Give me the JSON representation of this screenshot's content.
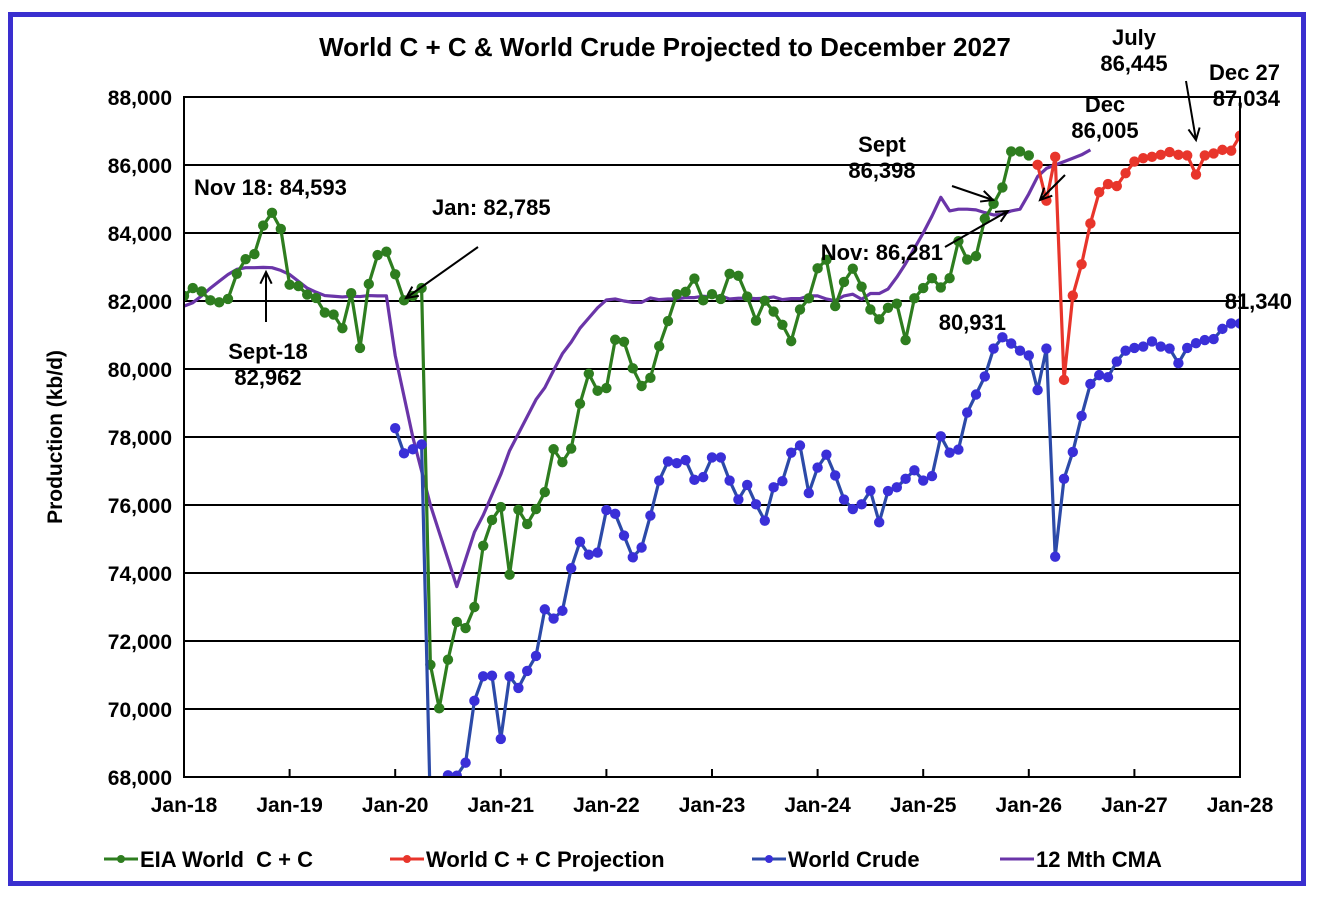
{
  "chart_data": {
    "type": "line",
    "title": "World C + C & World Crude Projected to December 2027",
    "xlabel": "",
    "ylabel": "Production (kb/d)",
    "ylim": [
      68000,
      88000
    ],
    "yticks": [
      "68,000",
      "70,000",
      "72,000",
      "74,000",
      "76,000",
      "78,000",
      "80,000",
      "82,000",
      "84,000",
      "86,000",
      "88,000"
    ],
    "ytick_values": [
      68000,
      70000,
      72000,
      74000,
      76000,
      78000,
      80000,
      82000,
      84000,
      86000,
      88000
    ],
    "xticks": [
      "Jan-18",
      "Jan-19",
      "Jan-20",
      "Jan-21",
      "Jan-22",
      "Jan-23",
      "Jan-24",
      "Jan-25",
      "Jan-26",
      "Jan-27",
      "Jan-28"
    ],
    "x_start": "Jan-18",
    "x_unit": "month index from Jan-18",
    "xlim": [
      0,
      120
    ],
    "grid": "horizontal",
    "legend_position": "bottom",
    "series": [
      {
        "name": "EIA World  C + C",
        "color": "#2e7d1f",
        "marker": true,
        "x_start": 0,
        "values": [
          82150,
          82380,
          82280,
          82020,
          81960,
          82060,
          82800,
          83230,
          83380,
          84220,
          84593,
          84120,
          82480,
          82440,
          82190,
          82090,
          81660,
          81600,
          81200,
          82230,
          80620,
          82500,
          83350,
          83450,
          82785,
          82020,
          82150,
          82380,
          71300,
          70020,
          71450,
          72560,
          72380,
          73000,
          74800,
          75560,
          75940,
          73950,
          75860,
          75440,
          75880,
          76380,
          77640,
          77260,
          77660,
          78980,
          79860,
          79360,
          79440,
          80860,
          80800,
          80020,
          79500,
          79740,
          80670,
          81410,
          82200,
          82270,
          82660,
          82020,
          82200,
          82060,
          82800,
          82740,
          82130,
          81420,
          82010,
          81690,
          81300,
          80820,
          81750,
          82080,
          82960,
          83210,
          81850,
          82560,
          82950,
          82420,
          81750,
          81460,
          81800,
          81920,
          80850,
          82080,
          82380,
          82670,
          82400,
          82670,
          83760,
          83220,
          83320,
          84420,
          84860,
          85340,
          86398,
          86398,
          86281
        ]
      },
      {
        "name": "World C + C Projection",
        "color": "#e8352b",
        "marker": true,
        "x_start": 97,
        "values": [
          86005,
          84950,
          86240,
          79680,
          82160,
          83080,
          84280,
          85200,
          85440,
          85380,
          85760,
          86100,
          86200,
          86240,
          86300,
          86380,
          86300,
          86280,
          85720,
          86280,
          86340,
          86445,
          86420,
          86860,
          87034
        ]
      },
      {
        "name": "World Crude",
        "color": "#3a2fd8",
        "line_color": "#2c4aa8",
        "marker": true,
        "x_start": 24,
        "values": [
          78260,
          77520,
          77640,
          77780,
          67000,
          67200,
          68050,
          68040,
          68420,
          70240,
          70960,
          70980,
          69120,
          70960,
          70620,
          71120,
          71560,
          72930,
          72660,
          72890,
          74140,
          74920,
          74540,
          74600,
          75850,
          75740,
          75100,
          74460,
          74750,
          75690,
          76720,
          77280,
          77230,
          77320,
          76740,
          76820,
          77400,
          77400,
          76720,
          76160,
          76590,
          76020,
          75540,
          76520,
          76700,
          77540,
          77750,
          76350,
          77100,
          77480,
          76870,
          76160,
          75880,
          76020,
          76420,
          75490,
          76410,
          76520,
          76770,
          77020,
          76720,
          76850,
          78020,
          77540,
          77630,
          78720,
          79250,
          79780,
          80600,
          80931,
          80750,
          80540,
          80400,
          79380,
          80600,
          74480,
          76770,
          77560,
          78620,
          79560,
          79820,
          79760,
          80220,
          80540,
          80620,
          80660,
          80810,
          80660,
          80600,
          80170,
          80620,
          80760,
          80850,
          80880,
          81180,
          81340,
          81340,
          81280
        ]
      },
      {
        "name": "12 Mth CMA",
        "color": "#6a35a8",
        "marker": false,
        "x_start": 0,
        "values": [
          81850,
          81950,
          82150,
          82380,
          82580,
          82780,
          82930,
          82980,
          82980,
          82990,
          82980,
          82900,
          82780,
          82580,
          82380,
          82260,
          82160,
          82140,
          82120,
          82140,
          82130,
          82160,
          82150,
          82150,
          80400,
          79200,
          78000,
          77000,
          76000,
          75200,
          74400,
          73600,
          74400,
          75200,
          75700,
          76300,
          76900,
          77600,
          78100,
          78600,
          79100,
          79450,
          79960,
          80450,
          80790,
          81200,
          81500,
          81800,
          82030,
          82060,
          82000,
          81960,
          81960,
          82090,
          82040,
          82060,
          82060,
          82100,
          82100,
          82140,
          82120,
          82150,
          82060,
          82080,
          82080,
          82070,
          82080,
          82120,
          82040,
          82070,
          82070,
          82150,
          82150,
          82060,
          82010,
          82150,
          82200,
          82050,
          82220,
          82220,
          82350,
          82700,
          83100,
          83550,
          84000,
          84500,
          85050,
          84650,
          84700,
          84700,
          84680,
          84600,
          84530,
          84550,
          84650,
          84700,
          85150,
          85660,
          85900,
          86000,
          86100,
          86200,
          86300,
          86445
        ]
      }
    ],
    "annotations": [
      {
        "text": [
          "Nov 18: 84,593"
        ]
      },
      {
        "text": [
          "Sept-18",
          "82,962"
        ]
      },
      {
        "text": [
          "Jan: 82,785"
        ]
      },
      {
        "text": [
          "Sept",
          "86,398"
        ]
      },
      {
        "text": [
          "Nov: 86,281"
        ]
      },
      {
        "text": [
          "Dec",
          "86,005"
        ]
      },
      {
        "text": [
          "July",
          "86,445"
        ]
      },
      {
        "text": [
          "Dec 27",
          "87,034"
        ]
      },
      {
        "text": [
          "80,931"
        ]
      },
      {
        "text": [
          "81,340"
        ]
      }
    ]
  }
}
